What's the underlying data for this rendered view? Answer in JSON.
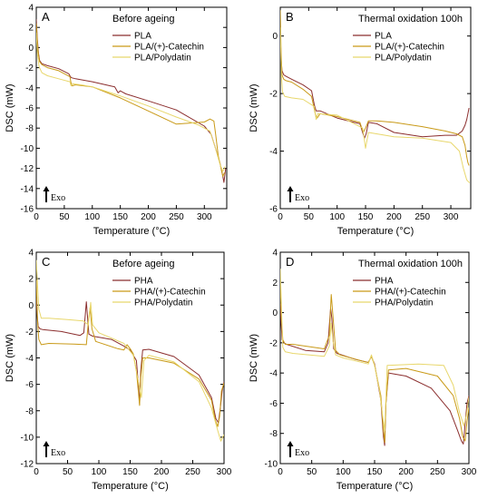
{
  "colors": {
    "c1": "#8B2E2E",
    "c2": "#C99A18",
    "c3": "#E8D76C"
  },
  "chart_data": [
    {
      "type": "line",
      "panel": "A",
      "title": "Before ageing",
      "xlabel": "Temperature (°C)",
      "ylabel": "DSC (mW)",
      "annotation": "Exo",
      "xlim": [
        0,
        340
      ],
      "ylim": [
        -16,
        4
      ],
      "xticks": [
        0,
        50,
        100,
        150,
        200,
        250,
        300
      ],
      "yticks": [
        4,
        2,
        0,
        -2,
        -4,
        -6,
        -8,
        -10,
        -12,
        -14,
        -16
      ],
      "legend_position": "top-right",
      "series": [
        {
          "name": "PLA",
          "color_key": "c1",
          "x": [
            0,
            2,
            4,
            6,
            10,
            20,
            40,
            58,
            61,
            63,
            70,
            100,
            140,
            146,
            150,
            153,
            160,
            200,
            250,
            300,
            312,
            320,
            328,
            333,
            335,
            338
          ],
          "y": [
            2.8,
            0.8,
            -0.6,
            -1.3,
            -1.6,
            -1.8,
            -2.1,
            -2.6,
            -2.9,
            -3.0,
            -3.1,
            -3.4,
            -3.9,
            -4.5,
            -4.3,
            -4.4,
            -4.6,
            -5.3,
            -6.2,
            -7.8,
            -8.6,
            -10.0,
            -11.5,
            -12.8,
            -13.4,
            -12.0
          ]
        },
        {
          "name": "PLA/(+)-Catechin",
          "color_key": "c2",
          "x": [
            0,
            2,
            4,
            6,
            10,
            20,
            40,
            60,
            62,
            64,
            70,
            100,
            150,
            200,
            250,
            300,
            310,
            317,
            320,
            325,
            330,
            333,
            336
          ],
          "y": [
            2.4,
            0.5,
            -0.8,
            -1.4,
            -1.7,
            -2.0,
            -2.3,
            -2.9,
            -3.5,
            -3.8,
            -3.7,
            -3.9,
            -5.0,
            -6.3,
            -7.6,
            -7.4,
            -7.1,
            -7.3,
            -8.5,
            -10.8,
            -12.0,
            -12.8,
            -12.4
          ]
        },
        {
          "name": "PLA/Polydatin",
          "color_key": "c3",
          "x": [
            0,
            2,
            5,
            10,
            20,
            40,
            60,
            62,
            65,
            80,
            100,
            150,
            200,
            250,
            290,
            310,
            320,
            328,
            333,
            337
          ],
          "y": [
            1.5,
            -0.6,
            -1.9,
            -2.5,
            -2.8,
            -3.1,
            -3.4,
            -3.8,
            -3.6,
            -3.7,
            -3.9,
            -4.8,
            -5.8,
            -6.9,
            -7.7,
            -8.3,
            -10.0,
            -11.6,
            -12.3,
            -11.8
          ]
        }
      ]
    },
    {
      "type": "line",
      "panel": "B",
      "title": "Thermal oxidation 100h",
      "xlabel": "Temperature (°C)",
      "ylabel": "DSC (mW)",
      "annotation": "Exo",
      "xlim": [
        0,
        335
      ],
      "ylim": [
        -6,
        1
      ],
      "xticks": [
        0,
        50,
        100,
        150,
        200,
        250,
        300
      ],
      "yticks": [
        0,
        -2,
        -4,
        -6
      ],
      "legend_position": "top-right",
      "series": [
        {
          "name": "PLA",
          "color_key": "c1",
          "x": [
            0,
            1.5,
            3,
            6,
            10,
            20,
            40,
            55,
            60,
            63,
            70,
            100,
            140,
            148,
            151,
            155,
            170,
            200,
            250,
            290,
            310,
            320,
            325,
            328,
            330,
            332
          ],
          "y": [
            0.2,
            -0.8,
            -1.2,
            -1.35,
            -1.4,
            -1.5,
            -1.7,
            -1.9,
            -2.4,
            -2.6,
            -2.6,
            -2.85,
            -3.05,
            -3.55,
            -3.4,
            -3.0,
            -3.05,
            -3.35,
            -3.5,
            -3.45,
            -3.45,
            -3.3,
            -3.1,
            -2.9,
            -2.7,
            -2.5
          ]
        },
        {
          "name": "PLA/(+)-Catechin",
          "color_key": "c2",
          "x": [
            0,
            1.5,
            3,
            6,
            10,
            20,
            40,
            55,
            62,
            65,
            70,
            100,
            140,
            146,
            150,
            155,
            170,
            200,
            250,
            290,
            310,
            320,
            325,
            328,
            330,
            332
          ],
          "y": [
            0.9,
            -0.5,
            -1.35,
            -1.5,
            -1.55,
            -1.6,
            -1.85,
            -2.1,
            -2.75,
            -2.85,
            -2.7,
            -2.8,
            -3.0,
            -3.35,
            -3.2,
            -2.95,
            -2.95,
            -3.0,
            -3.15,
            -3.3,
            -3.4,
            -3.5,
            -3.8,
            -4.2,
            -4.4,
            -4.5
          ]
        },
        {
          "name": "PLA/Polydatin",
          "color_key": "c3",
          "x": [
            0,
            2,
            4,
            8,
            20,
            40,
            60,
            63,
            66,
            100,
            145,
            150,
            155,
            200,
            250,
            300,
            315,
            322,
            328,
            333
          ],
          "y": [
            0.3,
            -1.4,
            -1.95,
            -2.1,
            -2.15,
            -2.2,
            -2.45,
            -2.9,
            -2.7,
            -2.75,
            -3.2,
            -3.9,
            -3.35,
            -3.5,
            -3.55,
            -3.7,
            -4.0,
            -4.6,
            -5.0,
            -5.1
          ]
        }
      ]
    },
    {
      "type": "line",
      "panel": "C",
      "title": "Before ageing",
      "xlabel": "Temperature (°C)",
      "ylabel": "DSC (mW)",
      "annotation": "Exo",
      "xlim": [
        0,
        300
      ],
      "ylim": [
        -12,
        4
      ],
      "xticks": [
        0,
        50,
        100,
        150,
        200,
        250,
        300
      ],
      "yticks": [
        4,
        2,
        0,
        -2,
        -4,
        -6,
        -8,
        -10,
        -12
      ],
      "legend_position": "top-right",
      "series": [
        {
          "name": "PHA",
          "color_key": "c1",
          "x": [
            0,
            1.5,
            3,
            6,
            10,
            40,
            70,
            76,
            80,
            84,
            90,
            120,
            140,
            150,
            160,
            163,
            165,
            167,
            170,
            180,
            220,
            260,
            280,
            287,
            291,
            294,
            297,
            300
          ],
          "y": [
            0.5,
            -0.8,
            -1.6,
            -1.8,
            -1.85,
            -2.0,
            -2.3,
            -2.1,
            0.25,
            -2.2,
            -2.35,
            -2.6,
            -3.1,
            -3.4,
            -4.2,
            -6.0,
            -7.5,
            -5.0,
            -3.4,
            -3.35,
            -3.9,
            -5.3,
            -7.0,
            -8.6,
            -8.9,
            -7.8,
            -6.5,
            -5.8
          ]
        },
        {
          "name": "PHA/(+)-Catechin",
          "color_key": "c2",
          "x": [
            0,
            2,
            4,
            8,
            20,
            60,
            80,
            83,
            86,
            89,
            95,
            130,
            140,
            145,
            150,
            155,
            160,
            163,
            165,
            167,
            170,
            180,
            220,
            260,
            280,
            286,
            290,
            293,
            296,
            300
          ],
          "y": [
            1.9,
            -1.2,
            -2.6,
            -3.0,
            -2.9,
            -2.95,
            -3.0,
            -1.4,
            -0.2,
            -1.8,
            -2.75,
            -3.3,
            -3.4,
            -3.0,
            -3.3,
            -3.7,
            -5.0,
            -6.5,
            -7.6,
            -5.5,
            -4.0,
            -4.0,
            -4.4,
            -5.6,
            -7.2,
            -8.7,
            -9.2,
            -8.4,
            -6.5,
            -5.9
          ]
        },
        {
          "name": "PHA/Polydatin",
          "color_key": "c3",
          "x": [
            0,
            2,
            4,
            8,
            20,
            50,
            75,
            83,
            87,
            90,
            100,
            140,
            155,
            160,
            165,
            168,
            172,
            180,
            220,
            260,
            280,
            290,
            295,
            300
          ],
          "y": [
            3.4,
            1.5,
            -0.3,
            -1.0,
            -1.0,
            -1.1,
            -1.2,
            -1.5,
            0.2,
            -1.5,
            -2.1,
            -2.9,
            -3.8,
            -5.0,
            -6.3,
            -7.0,
            -4.2,
            -3.8,
            -4.3,
            -5.8,
            -7.8,
            -9.5,
            -10.3,
            -9.8
          ]
        }
      ]
    },
    {
      "type": "line",
      "panel": "D",
      "title": "Thermal oxidation 100h",
      "xlabel": "Temperature (°C)",
      "ylabel": "DSC (mW)",
      "annotation": "Exo",
      "xlim": [
        0,
        300
      ],
      "ylim": [
        -10,
        4
      ],
      "xticks": [
        0,
        50,
        100,
        150,
        200,
        250,
        300
      ],
      "yticks": [
        4,
        2,
        0,
        -2,
        -4,
        -6,
        -8,
        -10
      ],
      "legend_position": "top-right",
      "series": [
        {
          "name": "PHA",
          "color_key": "c1",
          "x": [
            0,
            1.5,
            3,
            6,
            10,
            40,
            70,
            76,
            80,
            82,
            85,
            90,
            120,
            140,
            145,
            150,
            160,
            164,
            166,
            168,
            172,
            200,
            240,
            270,
            282,
            288,
            291,
            294,
            297,
            300
          ],
          "y": [
            0.6,
            -0.8,
            -1.8,
            -2.0,
            -2.1,
            -2.5,
            -2.6,
            -2.0,
            0.3,
            -0.4,
            -2.4,
            -2.7,
            -3.1,
            -3.3,
            -2.9,
            -3.4,
            -5.8,
            -8.2,
            -8.8,
            -6.0,
            -4.0,
            -4.2,
            -5.0,
            -6.5,
            -7.8,
            -8.5,
            -8.7,
            -7.4,
            -6.0,
            -5.5
          ]
        },
        {
          "name": "PHA/(+)-Catechin",
          "color_key": "c2",
          "x": [
            0,
            2,
            4,
            8,
            20,
            70,
            78,
            81,
            84,
            88,
            95,
            130,
            140,
            145,
            150,
            160,
            164,
            166,
            168,
            172,
            200,
            250,
            275,
            285,
            290,
            294,
            297,
            300
          ],
          "y": [
            1.9,
            -0.5,
            -1.8,
            -2.1,
            -2.1,
            -2.4,
            -1.5,
            1.2,
            -0.3,
            -2.5,
            -2.8,
            -3.2,
            -3.3,
            -2.9,
            -3.5,
            -5.5,
            -7.8,
            -8.6,
            -6.0,
            -3.8,
            -3.7,
            -4.2,
            -5.5,
            -7.0,
            -8.2,
            -8.5,
            -7.2,
            -6.3
          ]
        },
        {
          "name": "PHA/Polydatin",
          "color_key": "c3",
          "x": [
            0,
            2,
            4,
            8,
            20,
            70,
            78,
            81,
            84,
            88,
            100,
            140,
            145,
            150,
            158,
            163,
            166,
            170,
            220,
            260,
            275,
            285,
            292,
            296,
            300
          ],
          "y": [
            2.9,
            0.2,
            -2.3,
            -2.6,
            -2.7,
            -2.9,
            -2.2,
            -0.7,
            -1.9,
            -2.8,
            -3.0,
            -3.4,
            -2.8,
            -3.5,
            -5.2,
            -6.9,
            -7.8,
            -3.5,
            -3.4,
            -3.5,
            -4.8,
            -6.6,
            -7.5,
            -6.8,
            -5.6
          ]
        }
      ]
    }
  ]
}
